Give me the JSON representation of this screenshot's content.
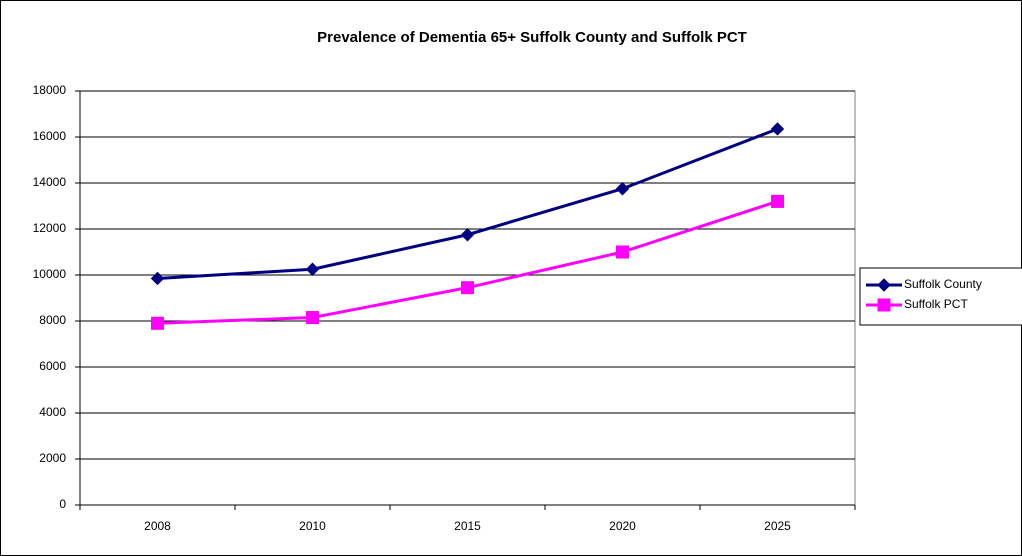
{
  "chart_data": {
    "type": "line",
    "title": "Prevalence of Dementia 65+ Suffolk County and Suffolk PCT",
    "categories": [
      "2008",
      "2010",
      "2015",
      "2020",
      "2025"
    ],
    "series": [
      {
        "name": "Suffolk County",
        "color": "#000080",
        "marker": "diamond",
        "values": [
          9850,
          10250,
          11750,
          13750,
          16350
        ]
      },
      {
        "name": "Suffolk PCT",
        "color": "#ff00ff",
        "marker": "square",
        "values": [
          7900,
          8150,
          9450,
          11000,
          13200
        ]
      }
    ],
    "ylim": [
      0,
      18000
    ],
    "yticks": [
      0,
      2000,
      4000,
      6000,
      8000,
      10000,
      12000,
      14000,
      16000,
      18000
    ],
    "grid": true,
    "legend": "right"
  }
}
